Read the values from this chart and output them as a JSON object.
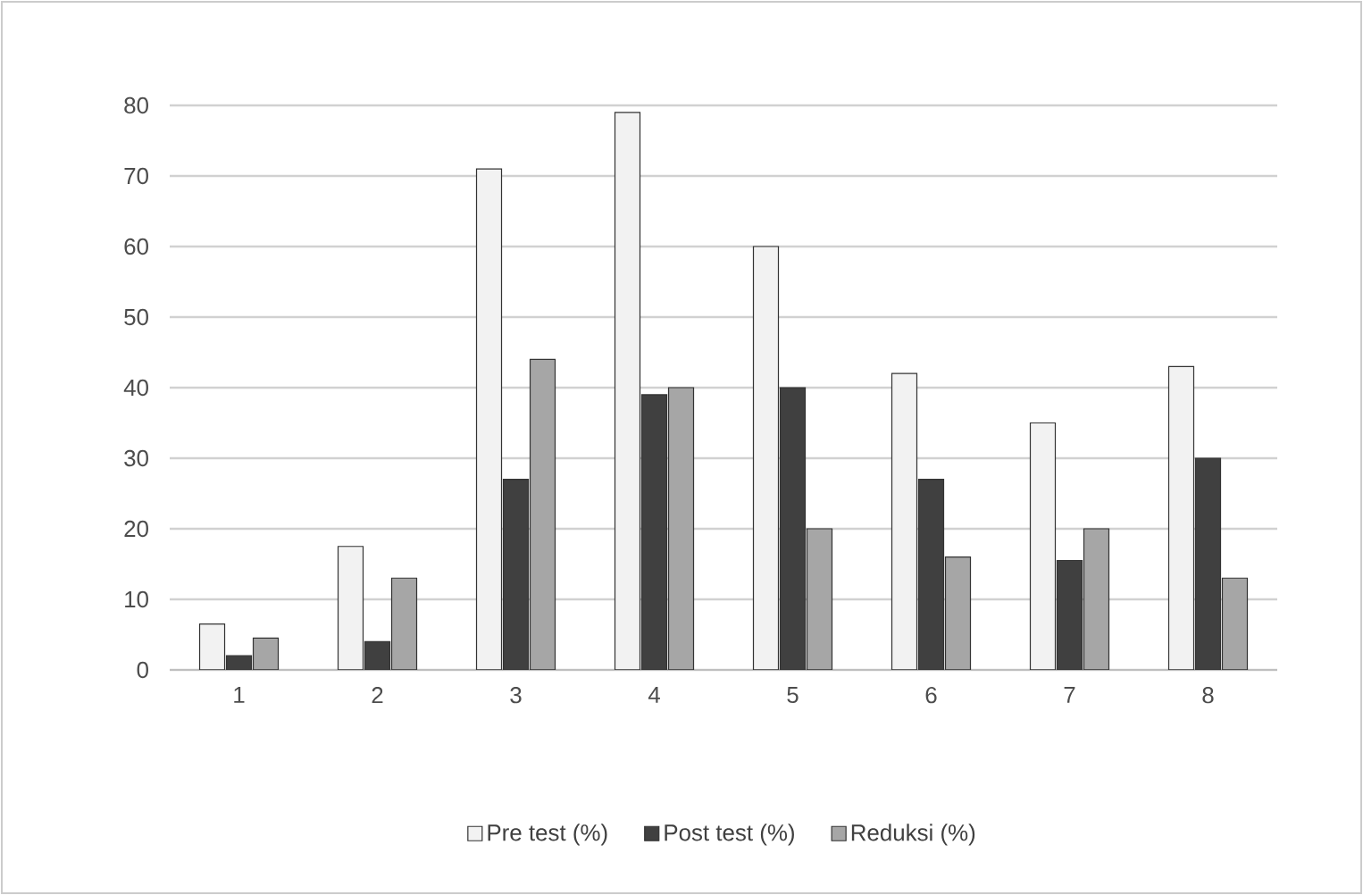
{
  "chart_data": {
    "type": "bar",
    "categories": [
      "1",
      "2",
      "3",
      "4",
      "5",
      "6",
      "7",
      "8"
    ],
    "series": [
      {
        "name": "Pre test (%)",
        "color": "#f2f2f2",
        "values": [
          6.5,
          17.5,
          71,
          79,
          60,
          42,
          35,
          43
        ]
      },
      {
        "name": "Post test (%)",
        "color": "#404040",
        "values": [
          2,
          4,
          27,
          39,
          40,
          27,
          15.5,
          30
        ]
      },
      {
        "name": "Reduksi (%)",
        "color": "#a6a6a6",
        "values": [
          4.5,
          13,
          44,
          40,
          20,
          16,
          20,
          13
        ]
      }
    ],
    "ylim": [
      0,
      80
    ],
    "yticks": [
      0,
      10,
      20,
      30,
      40,
      50,
      60,
      70,
      80
    ],
    "grid": "y",
    "legend": "bottom"
  }
}
